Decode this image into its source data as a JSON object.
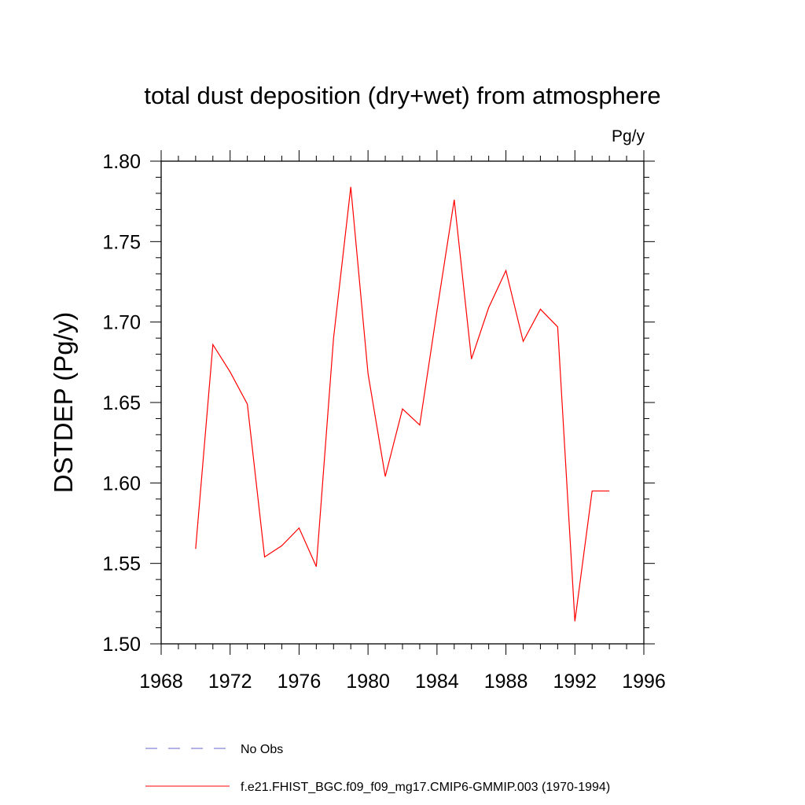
{
  "chart_data": {
    "type": "line",
    "title": "total dust deposition (dry+wet) from atmosphere",
    "units_label": "Pg/y",
    "ylabel": "DSTDEP  (Pg/y)",
    "xlabel": "",
    "xlim": [
      1968,
      1996
    ],
    "ylim": [
      1.5,
      1.8
    ],
    "x_ticks": [
      1968,
      1972,
      1976,
      1980,
      1984,
      1988,
      1992,
      1996
    ],
    "x_tick_labels": [
      "1968",
      "1972",
      "1976",
      "1980",
      "1984",
      "1988",
      "1992",
      "1996"
    ],
    "y_ticks": [
      1.5,
      1.55,
      1.6,
      1.65,
      1.7,
      1.75,
      1.8
    ],
    "y_tick_labels": [
      "1.50",
      "1.55",
      "1.60",
      "1.65",
      "1.70",
      "1.75",
      "1.80"
    ],
    "grid": false,
    "legend_placement": "bottom",
    "series": [
      {
        "name": "f.e21.FHIST_BGC.f09_f09_mg17.CMIP6-GMMIP.003 (1970-1994)",
        "color": "#ff0000",
        "style": "solid",
        "x": [
          1970,
          1971,
          1972,
          1973,
          1974,
          1975,
          1976,
          1977,
          1978,
          1979,
          1980,
          1981,
          1982,
          1983,
          1984,
          1985,
          1986,
          1987,
          1988,
          1989,
          1990,
          1991,
          1992,
          1993,
          1994
        ],
        "values": [
          1.559,
          1.686,
          1.669,
          1.649,
          1.554,
          1.561,
          1.572,
          1.548,
          1.69,
          1.784,
          1.668,
          1.604,
          1.646,
          1.636,
          1.707,
          1.776,
          1.677,
          1.709,
          1.732,
          1.688,
          1.708,
          1.697,
          1.514,
          1.595,
          1.595
        ]
      }
    ],
    "legend": [
      {
        "label": "No Obs",
        "color": "#6666cc",
        "style": "dashed"
      },
      {
        "label": "f.e21.FHIST_BGC.f09_f09_mg17.CMIP6-GMMIP.003 (1970-1994)",
        "color": "#ff0000",
        "style": "solid"
      }
    ]
  }
}
